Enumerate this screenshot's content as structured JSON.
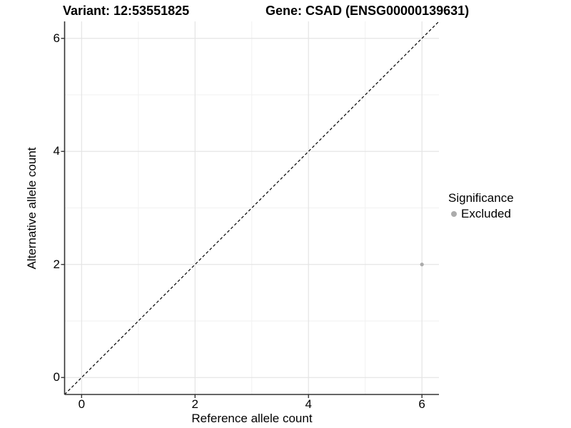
{
  "header": {
    "variant_title": "Variant: 12:53551825",
    "gene_title": "Gene: CSAD (ENSG00000139631)"
  },
  "colors": {
    "background": "#ffffff",
    "axis_line": "#333333",
    "grid_major": "#e4e4e4",
    "grid_minor": "#f1f1f1",
    "identity_line": "#000000",
    "excluded_point": "#ababab",
    "text": "#000000"
  },
  "chart_data": {
    "type": "scatter",
    "xlabel": "Reference allele count",
    "ylabel": "Alternative allele count",
    "xlim": [
      -0.3,
      6.3
    ],
    "ylim": [
      -0.3,
      6.3
    ],
    "x_major_ticks": [
      0,
      2,
      4,
      6
    ],
    "y_major_ticks": [
      0,
      2,
      4,
      6
    ],
    "x_minor_gridlines": [
      1,
      3,
      5
    ],
    "y_minor_gridlines": [
      1,
      3,
      5
    ],
    "grid": "major-and-minor",
    "identity_line": {
      "style": "dashed",
      "color": "#000000",
      "from": [
        -0.3,
        -0.3
      ],
      "to": [
        6.3,
        6.3
      ]
    },
    "series": [
      {
        "name": "Excluded",
        "color": "#ababab",
        "points": [
          [
            6,
            2
          ]
        ]
      }
    ],
    "legend": {
      "position": "right",
      "title": "Significance",
      "entries": [
        {
          "label": "Excluded",
          "color": "#ababab"
        }
      ]
    }
  }
}
